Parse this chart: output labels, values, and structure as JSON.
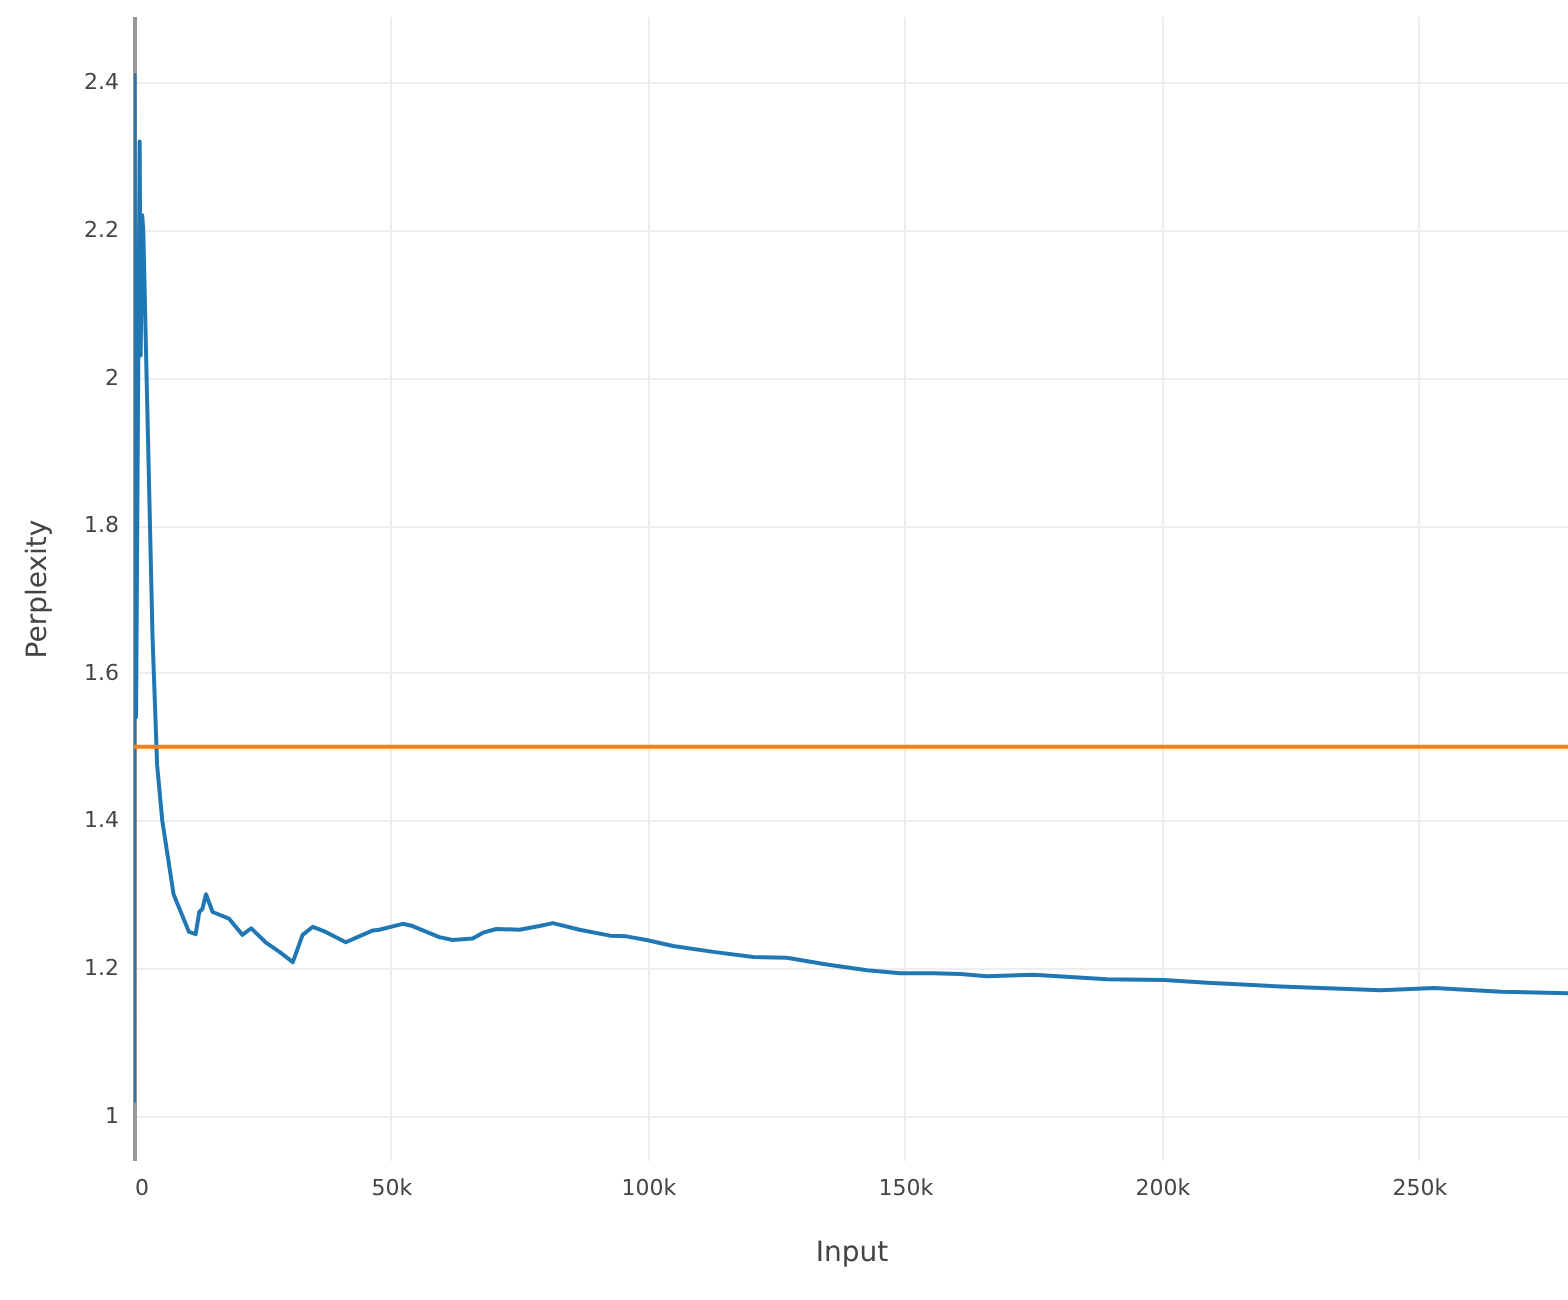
{
  "chart_data": {
    "type": "line",
    "xlabel": "Input",
    "ylabel": "Perplexity",
    "xlim": [
      0,
      279000
    ],
    "ylim": [
      0.94,
      2.49
    ],
    "xticks": [
      0,
      {
        "value": 50000,
        "label": "50k"
      },
      {
        "value": 100000,
        "label": "100k"
      },
      {
        "value": 150000,
        "label": "150k"
      },
      {
        "value": 200000,
        "label": "200k"
      },
      {
        "value": 250000,
        "label": "250k"
      }
    ],
    "yticks": [
      1,
      1.2,
      1.4,
      1.6,
      1.8,
      2,
      2.2,
      2.4
    ],
    "grid": true,
    "line_style": "solid",
    "series": [
      {
        "color": "#1f77b4",
        "x": [
          0,
          100,
          400,
          1100,
          1300,
          1600,
          1800,
          3600,
          4500,
          5500,
          7700,
          10700,
          12000,
          12700,
          13300,
          14000,
          15300,
          18500,
          21100,
          22800,
          25600,
          28300,
          30900,
          32800,
          34800,
          37300,
          41200,
          43800,
          46500,
          47700,
          52300,
          54200,
          59400,
          62000,
          65900,
          67900,
          70500,
          75000,
          78900,
          81500,
          86700,
          92600,
          95800,
          99700,
          104900,
          112700,
          120500,
          127000,
          134800,
          142600,
          149100,
          155600,
          160800,
          165900,
          175000,
          189300,
          200400,
          208800,
          223100,
          234800,
          242600,
          253000,
          258200,
          266000,
          279000
        ],
        "values": [
          1.02,
          2.41,
          1.54,
          2.32,
          2.03,
          2.22,
          2.2,
          1.65,
          1.475,
          1.4,
          1.3,
          1.249,
          1.246,
          1.276,
          1.28,
          1.3,
          1.276,
          1.267,
          1.245,
          1.254,
          1.235,
          1.222,
          1.208,
          1.245,
          1.256,
          1.249,
          1.235,
          1.243,
          1.251,
          1.252,
          1.26,
          1.257,
          1.242,
          1.238,
          1.24,
          1.248,
          1.253,
          1.252,
          1.257,
          1.261,
          1.252,
          1.244,
          1.243,
          1.238,
          1.23,
          1.222,
          1.215,
          1.214,
          1.205,
          1.197,
          1.193,
          1.193,
          1.192,
          1.189,
          1.191,
          1.185,
          1.184,
          1.18,
          1.175,
          1.172,
          1.17,
          1.173,
          1.171,
          1.168,
          1.166
        ]
      }
    ],
    "ref_lines": [
      {
        "axis": "y",
        "value": 1.5,
        "color": "#ff7f0e",
        "line_style": "solid"
      }
    ]
  }
}
